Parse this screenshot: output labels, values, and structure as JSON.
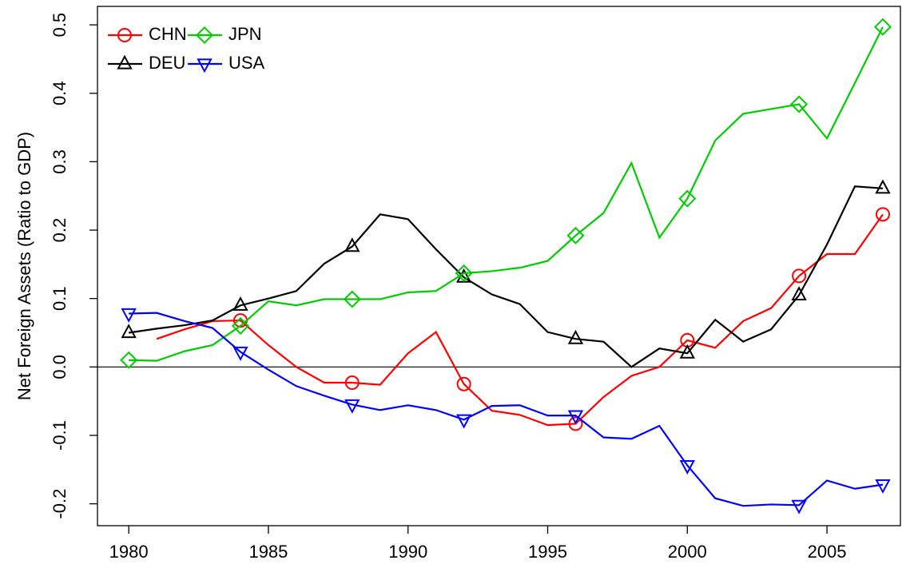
{
  "chart_data": {
    "type": "line",
    "y_label": "Net Foreign Assets (Ratio to GDP)",
    "x": [
      1980,
      1981,
      1982,
      1983,
      1984,
      1985,
      1986,
      1987,
      1988,
      1989,
      1990,
      1991,
      1992,
      1993,
      1994,
      1995,
      1996,
      1997,
      1998,
      1999,
      2000,
      2001,
      2002,
      2003,
      2004,
      2005,
      2006,
      2007
    ],
    "series": [
      {
        "name": "CHN",
        "color": "#ff0000",
        "marker": "circle",
        "values": [
          null,
          0.041,
          0.055,
          0.067,
          0.068,
          0.032,
          0.0,
          -0.023,
          -0.023,
          -0.026,
          0.02,
          0.051,
          -0.025,
          -0.064,
          -0.07,
          -0.085,
          -0.083,
          -0.044,
          -0.013,
          0.0,
          0.039,
          0.028,
          0.067,
          0.086,
          0.133,
          0.165,
          0.165,
          0.223
        ]
      },
      {
        "name": "DEU",
        "color": "#000000",
        "marker": "triangle",
        "values": [
          0.05,
          0.056,
          0.061,
          0.068,
          0.09,
          0.1,
          0.111,
          0.151,
          0.176,
          0.223,
          0.216,
          0.172,
          0.131,
          0.106,
          0.092,
          0.051,
          0.041,
          0.037,
          0.0,
          0.027,
          0.02,
          0.069,
          0.037,
          0.055,
          0.105,
          0.179,
          0.264,
          0.261
        ]
      },
      {
        "name": "JPN",
        "color": "#00cd00",
        "marker": "diamond",
        "values": [
          0.01,
          0.009,
          0.023,
          0.032,
          0.06,
          0.096,
          0.09,
          0.099,
          0.099,
          0.099,
          0.109,
          0.111,
          0.137,
          0.14,
          0.145,
          0.155,
          0.192,
          0.225,
          0.298,
          0.189,
          0.246,
          0.331,
          0.37,
          0.377,
          0.384,
          0.334,
          0.415,
          0.497
        ]
      },
      {
        "name": "USA",
        "color": "#0000ff",
        "marker": "triangle-down",
        "values": [
          0.078,
          0.079,
          0.067,
          0.057,
          0.022,
          -0.004,
          -0.028,
          -0.042,
          -0.055,
          -0.063,
          -0.056,
          -0.063,
          -0.077,
          -0.057,
          -0.056,
          -0.071,
          -0.071,
          -0.103,
          -0.105,
          -0.086,
          -0.144,
          -0.192,
          -0.203,
          -0.201,
          -0.202,
          -0.166,
          -0.178,
          -0.172
        ]
      }
    ],
    "xlim": [
      1978.88,
      2007.63
    ],
    "ylim": [
      -0.232,
      0.527
    ],
    "xticks": [
      1980,
      1985,
      1990,
      1995,
      2000,
      2005
    ],
    "yticks": [
      -0.2,
      -0.1,
      {
        "value": 0,
        "label": "0.0"
      },
      0.1,
      0.2,
      0.3,
      0.4,
      0.5
    ],
    "reference_line": 0,
    "legend": "top-left",
    "legend_columns": 2
  }
}
